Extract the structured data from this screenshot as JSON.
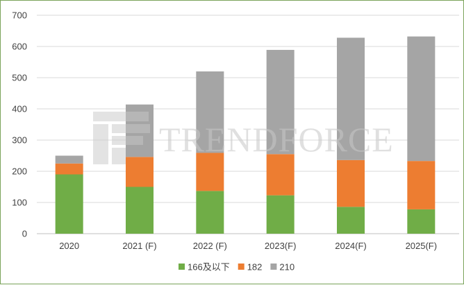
{
  "chart_data": {
    "type": "bar",
    "stacked": true,
    "title": "",
    "xlabel": "",
    "ylabel": "",
    "ylim": [
      0,
      700
    ],
    "yticks": [
      0,
      100,
      200,
      300,
      400,
      500,
      600,
      700
    ],
    "grid": true,
    "legend_position": "bottom",
    "categories": [
      "2020",
      "2021 (F)",
      "2022 (F)",
      "2023(F)",
      "2024(F)",
      "2025(F)"
    ],
    "series": [
      {
        "name": "166及以下",
        "color": "#70ad47",
        "values": [
          190,
          150,
          137,
          123,
          86,
          78
        ]
      },
      {
        "name": "182",
        "color": "#ed7d31",
        "values": [
          35,
          96,
          122,
          132,
          150,
          155
        ]
      },
      {
        "name": "210",
        "color": "#a5a5a5",
        "values": [
          25,
          168,
          261,
          334,
          392,
          399
        ]
      }
    ]
  },
  "watermark": {
    "text": "TRENDFORCE",
    "color": "#c8c8c8"
  },
  "frame_color": "#7aa35a"
}
